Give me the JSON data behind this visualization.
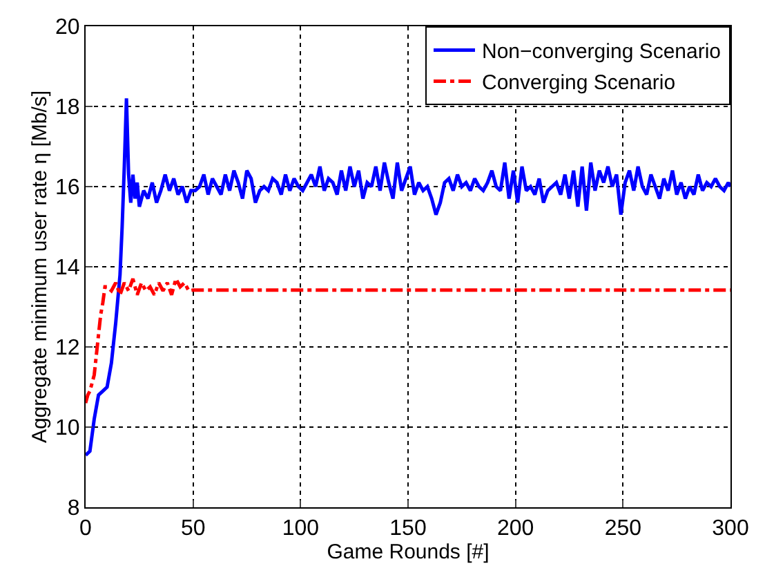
{
  "chart_data": {
    "type": "line",
    "xlabel": "Game Rounds [#]",
    "ylabel": "Aggregate minimum user rate η [Mb/s]",
    "xlim": [
      0,
      300
    ],
    "ylim": [
      8,
      20
    ],
    "xticks": [
      0,
      50,
      100,
      150,
      200,
      250,
      300
    ],
    "yticks": [
      8,
      10,
      12,
      14,
      16,
      18,
      20
    ],
    "grid": true,
    "legend": "top right",
    "marker": "none",
    "series": [
      {
        "name": "Non−converging Scenario",
        "color": "#0000ff",
        "line_style": "solid",
        "x": [
          0,
          2,
          4,
          6,
          8,
          10,
          12,
          14,
          16,
          17,
          18,
          19,
          20,
          21,
          22,
          23,
          24,
          25,
          27,
          29,
          31,
          33,
          35,
          37,
          39,
          41,
          43,
          45,
          47,
          49,
          51,
          53,
          55,
          57,
          59,
          61,
          63,
          65,
          67,
          69,
          71,
          73,
          75,
          77,
          79,
          81,
          83,
          85,
          87,
          89,
          91,
          93,
          95,
          97,
          99,
          101,
          103,
          105,
          107,
          109,
          111,
          113,
          115,
          117,
          119,
          121,
          123,
          125,
          127,
          129,
          131,
          133,
          135,
          137,
          139,
          141,
          143,
          145,
          147,
          149,
          151,
          153,
          155,
          157,
          159,
          161,
          163,
          165,
          167,
          169,
          171,
          173,
          175,
          177,
          179,
          181,
          183,
          185,
          187,
          189,
          191,
          193,
          195,
          197,
          199,
          201,
          203,
          205,
          207,
          209,
          211,
          213,
          215,
          217,
          219,
          221,
          223,
          225,
          227,
          229,
          231,
          233,
          235,
          237,
          239,
          241,
          243,
          245,
          247,
          249,
          251,
          253,
          255,
          257,
          259,
          261,
          263,
          265,
          267,
          269,
          271,
          273,
          275,
          277,
          279,
          281,
          283,
          285,
          287,
          289,
          291,
          293,
          295,
          297,
          299,
          300
        ],
        "values": [
          9.3,
          9.4,
          10.2,
          10.8,
          10.9,
          11.0,
          11.6,
          12.6,
          13.8,
          15.0,
          16.5,
          18.2,
          16.3,
          15.6,
          16.3,
          15.7,
          16.1,
          15.5,
          15.9,
          15.7,
          16.1,
          15.6,
          15.9,
          16.3,
          15.9,
          16.2,
          15.8,
          16.0,
          15.6,
          15.9,
          15.9,
          16.0,
          16.3,
          15.8,
          16.2,
          16.0,
          15.8,
          16.3,
          15.9,
          16.4,
          16.1,
          15.7,
          16.4,
          16.2,
          15.6,
          15.9,
          16.0,
          15.9,
          16.2,
          16.1,
          15.8,
          16.3,
          15.9,
          16.2,
          16.0,
          15.9,
          16.1,
          16.3,
          16.0,
          16.5,
          15.9,
          16.2,
          16.1,
          15.8,
          16.4,
          15.9,
          16.5,
          16.0,
          16.4,
          15.7,
          16.1,
          16.0,
          16.5,
          15.9,
          16.6,
          16.1,
          15.7,
          16.6,
          15.9,
          16.2,
          16.5,
          15.8,
          16.1,
          15.9,
          16.0,
          15.7,
          15.3,
          15.6,
          16.1,
          16.2,
          15.9,
          16.3,
          16.0,
          16.1,
          15.9,
          16.2,
          16.0,
          15.9,
          16.1,
          16.4,
          16.0,
          15.9,
          16.6,
          15.7,
          16.4,
          15.6,
          16.5,
          15.9,
          16.0,
          15.8,
          16.2,
          15.6,
          15.9,
          16.0,
          16.1,
          15.8,
          16.3,
          15.7,
          16.4,
          15.5,
          16.5,
          15.4,
          16.6,
          15.9,
          16.4,
          16.1,
          16.5,
          16.0,
          16.3,
          15.3,
          16.1,
          16.4,
          15.9,
          16.5,
          16.0,
          15.8,
          16.3,
          16.0,
          15.7,
          16.2,
          15.9,
          16.4,
          15.8,
          16.1,
          15.7,
          16.0,
          15.8,
          16.3,
          15.9,
          16.1,
          16.0,
          16.2,
          16.0,
          15.9,
          16.1,
          16.0
        ]
      },
      {
        "name": "Converging Scenario",
        "color": "#ff0000",
        "line_style": "dashdot",
        "x": [
          0,
          1,
          2,
          3,
          4,
          5,
          6,
          7,
          8,
          9,
          10,
          12,
          14,
          16,
          18,
          20,
          22,
          24,
          26,
          28,
          30,
          32,
          34,
          36,
          38,
          40,
          42,
          44,
          46,
          48,
          50,
          300
        ],
        "values": [
          10.6,
          10.8,
          10.9,
          11.1,
          11.3,
          11.8,
          12.3,
          12.8,
          13.1,
          13.5,
          13.5,
          13.4,
          13.6,
          13.3,
          13.6,
          13.4,
          13.7,
          13.3,
          13.6,
          13.4,
          13.5,
          13.3,
          13.6,
          13.4,
          13.6,
          13.3,
          13.7,
          13.5,
          13.6,
          13.4,
          13.42,
          13.42
        ]
      }
    ]
  }
}
